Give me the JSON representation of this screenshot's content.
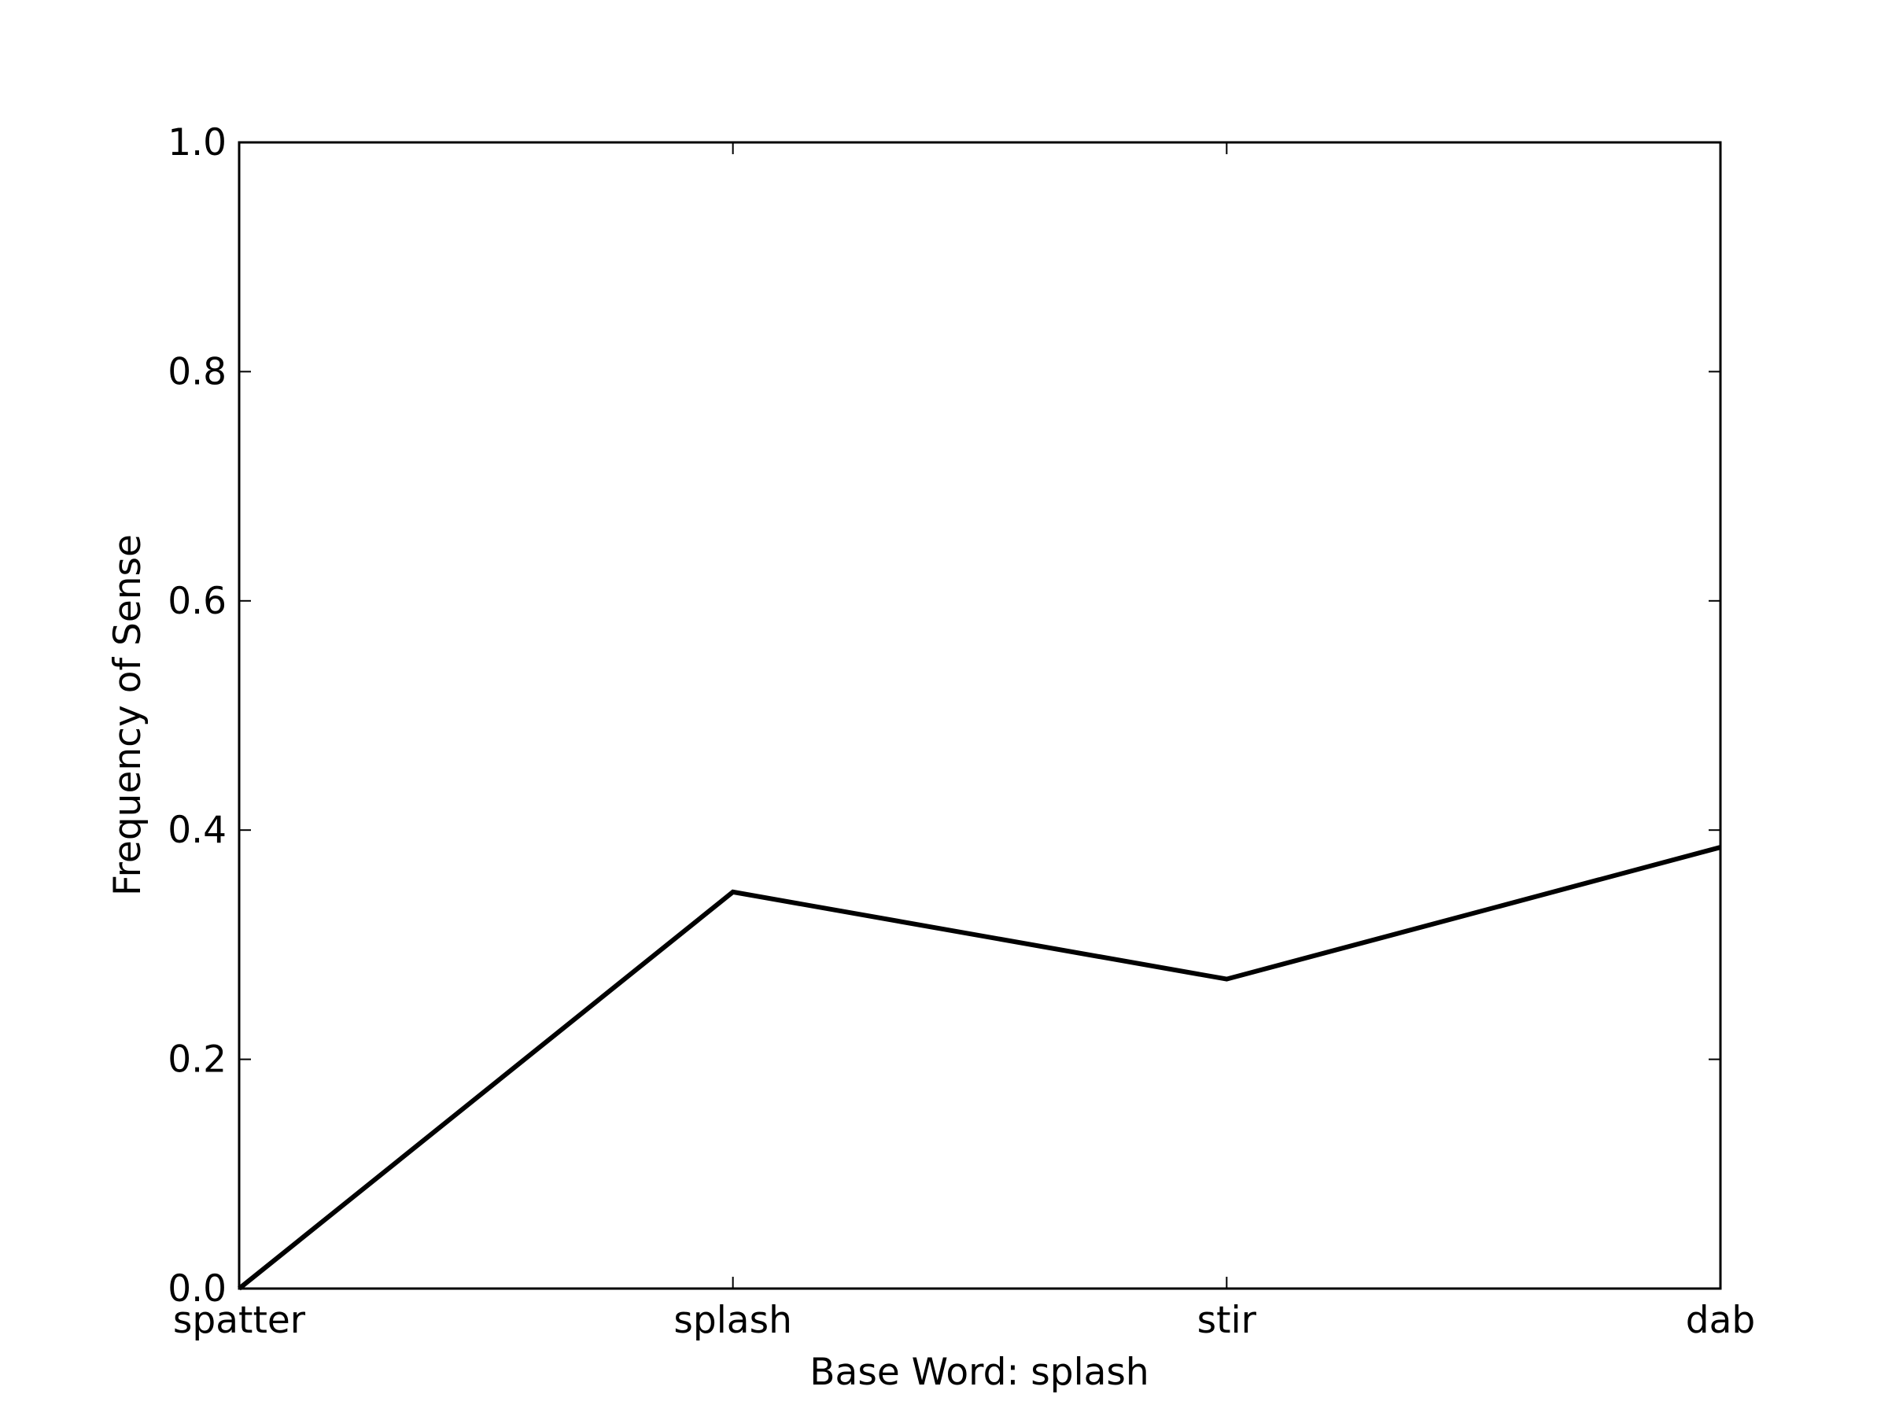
{
  "chart_data": {
    "type": "line",
    "title": "",
    "xlabel": "Base Word: splash",
    "ylabel": "Frequency of Sense",
    "categories": [
      "spatter",
      "splash",
      "stir",
      "dab"
    ],
    "series": [
      {
        "values": [
          0.0,
          0.346,
          0.27,
          0.385
        ]
      }
    ],
    "ylim": [
      0.0,
      1.0
    ],
    "yticks": [
      "0.0",
      "0.2",
      "0.4",
      "0.6",
      "0.8",
      "1.0"
    ],
    "grid": false,
    "line_color": "#000000"
  }
}
